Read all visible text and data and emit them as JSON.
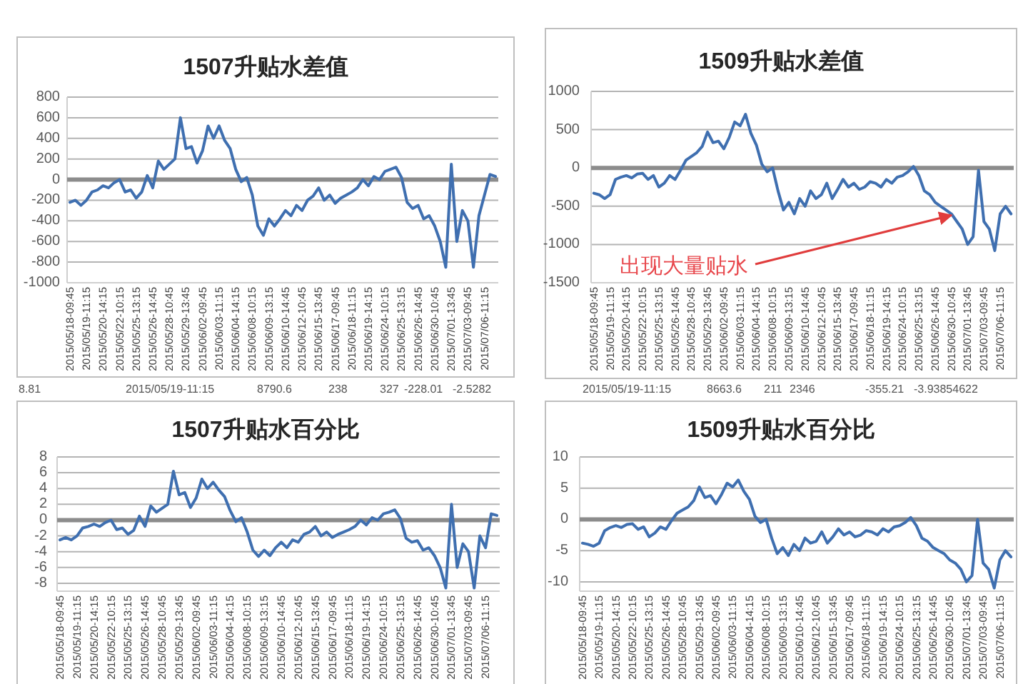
{
  "chart_data": [
    {
      "type": "line",
      "title": "1507升贴水差值",
      "categories": [
        "2015/05/18-09:45",
        null,
        null,
        "2015/05/19-11:15",
        null,
        null,
        "2015/05/20-14:15",
        null,
        null,
        "2015/05/22-10:15",
        null,
        null,
        "2015/05/25-13:15",
        null,
        null,
        "2015/05/26-14:45",
        null,
        null,
        "2015/05/28-10:45",
        null,
        null,
        "2015/05/29-13:45",
        null,
        null,
        "2015/06/02-09:45",
        null,
        null,
        "2015/06/03-11:15",
        null,
        null,
        "2015/06/04-14:15",
        null,
        null,
        "2015/06/08-10:15",
        null,
        null,
        "2015/06/09-13:15",
        null,
        null,
        "2015/06/10-14:45",
        null,
        null,
        "2015/06/12-10:45",
        null,
        null,
        "2015/06/15-13:45",
        null,
        null,
        "2015/06/17-09:45",
        null,
        null,
        "2015/06/18-11:15",
        null,
        null,
        "2015/06/19-14:15",
        null,
        null,
        "2015/06/24-10:15",
        null,
        null,
        "2015/06/25-13:15",
        null,
        null,
        "2015/06/26-14:45",
        null,
        null,
        "2015/06/30-10:45",
        null,
        null,
        "2015/07/01-13:45",
        null,
        null,
        "2015/07/03-09:45",
        null,
        null,
        "2015/07/06-11:15",
        null,
        null
      ],
      "series": [
        {
          "color": "#3f6fb0",
          "values": [
            -220,
            -200,
            -250,
            -200,
            -120,
            -100,
            -60,
            -80,
            -30,
            0,
            -120,
            -100,
            -180,
            -120,
            40,
            -80,
            180,
            100,
            150,
            200,
            600,
            300,
            320,
            160,
            280,
            520,
            400,
            520,
            380,
            300,
            100,
            -20,
            20,
            -150,
            -450,
            -540,
            -380,
            -450,
            -380,
            -300,
            -350,
            -250,
            -300,
            -200,
            -160,
            -80,
            -200,
            -150,
            -230,
            -180,
            -150,
            -120,
            -80,
            0,
            -60,
            30,
            0,
            80,
            100,
            120,
            20,
            -220,
            -280,
            -250,
            -380,
            -350,
            -450,
            -600,
            -850,
            150,
            -600,
            -300,
            -400,
            -850,
            -350,
            -150,
            50,
            30
          ]
        }
      ],
      "ylim": [
        -1000,
        800
      ],
      "yticks": [
        -1000,
        -800,
        -600,
        -400,
        -200,
        0,
        200,
        400,
        600,
        800
      ],
      "grid": "y",
      "annotations": [
        "8.81",
        "2015/05/19-11:15",
        "8790.6",
        "238",
        "327",
        "-228.01",
        "-2.5282"
      ]
    },
    {
      "type": "line",
      "title": "1509升贴水差值",
      "categories": [
        "2015/05/18-09:45",
        null,
        null,
        "2015/05/19-11:15",
        null,
        null,
        "2015/05/20-14:15",
        null,
        null,
        "2015/05/22-10:15",
        null,
        null,
        "2015/05/25-13:15",
        null,
        null,
        "2015/05/26-14:45",
        null,
        null,
        "2015/05/28-10:45",
        null,
        null,
        "2015/05/29-13:45",
        null,
        null,
        "2015/06/02-09:45",
        null,
        null,
        "2015/06/03-11:15",
        null,
        null,
        "2015/06/04-14:15",
        null,
        null,
        "2015/06/08-10:15",
        null,
        null,
        "2015/06/09-13:15",
        null,
        null,
        "2015/06/10-14:45",
        null,
        null,
        "2015/06/12-10:45",
        null,
        null,
        "2015/06/15-13:45",
        null,
        null,
        "2015/06/17-09:45",
        null,
        null,
        "2015/06/18-11:15",
        null,
        null,
        "2015/06/19-14:15",
        null,
        null,
        "2015/06/24-10:15",
        null,
        null,
        "2015/06/25-13:15",
        null,
        null,
        "2015/06/26-14:45",
        null,
        null,
        "2015/06/30-10:45",
        null,
        null,
        "2015/07/01-13:45",
        null,
        null,
        "2015/07/03-09:45",
        null,
        null,
        "2015/07/06-11:15",
        null,
        null
      ],
      "series": [
        {
          "color": "#3f6fb0",
          "values": [
            -330,
            -350,
            -400,
            -350,
            -150,
            -120,
            -100,
            -130,
            -80,
            -70,
            -150,
            -100,
            -250,
            -200,
            -100,
            -150,
            -30,
            100,
            150,
            200,
            280,
            470,
            330,
            350,
            250,
            400,
            600,
            550,
            700,
            450,
            300,
            50,
            -50,
            0,
            -300,
            -550,
            -450,
            -600,
            -400,
            -500,
            -300,
            -400,
            -350,
            -200,
            -400,
            -280,
            -150,
            -250,
            -200,
            -280,
            -250,
            -180,
            -200,
            -250,
            -150,
            -200,
            -120,
            -100,
            -50,
            20,
            -100,
            -300,
            -350,
            -450,
            -500,
            -550,
            -600,
            -700,
            -800,
            -1000,
            -900,
            -30,
            -700,
            -800,
            -1080,
            -600,
            -500,
            -600
          ]
        }
      ],
      "ylim": [
        -1500,
        1000
      ],
      "yticks": [
        -1500,
        -1000,
        -500,
        0,
        500,
        1000
      ],
      "grid": "y",
      "annotations": [
        "2015/05/19-11:15",
        "8663.6",
        "211",
        "2346",
        "-355.21",
        "-3.93854622",
        {
          "text": "出现大量贴水",
          "x": "2015/06/30-10:45",
          "y": -600
        }
      ]
    },
    {
      "type": "line",
      "title": "1507升贴水百分比",
      "categories": [
        "2015/05/18-09:45",
        null,
        null,
        "2015/05/19-11:15",
        null,
        null,
        "2015/05/20-14:15",
        null,
        null,
        "2015/05/22-10:15",
        null,
        null,
        "2015/05/25-13:15",
        null,
        null,
        "2015/05/26-14:45",
        null,
        null,
        "2015/05/28-10:45",
        null,
        null,
        "2015/05/29-13:45",
        null,
        null,
        "2015/06/02-09:45",
        null,
        null,
        "2015/06/03-11:15",
        null,
        null,
        "2015/06/04-14:15",
        null,
        null,
        "2015/06/08-10:15",
        null,
        null,
        "2015/06/09-13:15",
        null,
        null,
        "2015/06/10-14:45",
        null,
        null,
        "2015/06/12-10:45",
        null,
        null,
        "2015/06/15-13:45",
        null,
        null,
        "2015/06/17-09:45",
        null,
        null,
        "2015/06/18-11:15",
        null,
        null,
        "2015/06/19-14:15",
        null,
        null,
        "2015/06/24-10:15",
        null,
        null,
        "2015/06/25-13:15",
        null,
        null,
        "2015/06/26-14:45",
        null,
        null,
        "2015/06/30-10:45",
        null,
        null,
        "2015/07/01-13:45",
        null,
        null,
        "2015/07/03-09:45",
        null,
        null,
        "2015/07/06-11:15",
        null,
        null
      ],
      "series": [
        {
          "color": "#3f6fb0",
          "values": [
            -2.5,
            -2.2,
            -2.5,
            -2,
            -1,
            -0.8,
            -0.5,
            -0.8,
            -0.3,
            0,
            -1.2,
            -1,
            -1.8,
            -1.3,
            0.5,
            -0.8,
            1.8,
            1,
            1.5,
            2,
            6.2,
            3.2,
            3.5,
            1.6,
            2.8,
            5.2,
            4,
            4.8,
            3.8,
            3,
            1.2,
            -0.2,
            0.3,
            -1.5,
            -3.8,
            -4.6,
            -3.8,
            -4.5,
            -3.5,
            -2.8,
            -3.5,
            -2.5,
            -2.8,
            -1.8,
            -1.5,
            -0.8,
            -2,
            -1.5,
            -2.2,
            -1.8,
            -1.5,
            -1.2,
            -0.8,
            0,
            -0.6,
            0.3,
            0,
            0.8,
            1,
            1.3,
            0.2,
            -2.3,
            -2.8,
            -2.6,
            -3.8,
            -3.5,
            -4.5,
            -6,
            -8.6,
            2,
            -6,
            -3,
            -4,
            -8.6,
            -2,
            -3.5,
            0.8,
            0.6
          ]
        }
      ],
      "ylim": [
        -9,
        8
      ],
      "yticks": [
        -8,
        -6,
        -4,
        -2,
        0,
        2,
        4,
        6,
        8
      ],
      "grid": "y"
    },
    {
      "type": "line",
      "title": "1509升贴水百分比",
      "categories": [
        "2015/05/18-09:45",
        null,
        null,
        "2015/05/19-11:15",
        null,
        null,
        "2015/05/20-14:15",
        null,
        null,
        "2015/05/22-10:15",
        null,
        null,
        "2015/05/25-13:15",
        null,
        null,
        "2015/05/26-14:45",
        null,
        null,
        "2015/05/28-10:45",
        null,
        null,
        "2015/05/29-13:45",
        null,
        null,
        "2015/06/02-09:45",
        null,
        null,
        "2015/06/03-11:15",
        null,
        null,
        "2015/06/04-14:15",
        null,
        null,
        "2015/06/08-10:15",
        null,
        null,
        "2015/06/09-13:15",
        null,
        null,
        "2015/06/10-14:45",
        null,
        null,
        "2015/06/12-10:45",
        null,
        null,
        "2015/06/15-13:45",
        null,
        null,
        "2015/06/17-09:45",
        null,
        null,
        "2015/06/18-11:15",
        null,
        null,
        "2015/06/19-14:15",
        null,
        null,
        "2015/06/24-10:15",
        null,
        null,
        "2015/06/25-13:15",
        null,
        null,
        "2015/06/26-14:45",
        null,
        null,
        "2015/06/30-10:45",
        null,
        null,
        "2015/07/01-13:45",
        null,
        null,
        "2015/07/03-09:45",
        null,
        null,
        "2015/07/06-11:15",
        null,
        null
      ],
      "series": [
        {
          "color": "#3f6fb0",
          "values": [
            -3.8,
            -4,
            -4.3,
            -3.8,
            -1.8,
            -1.3,
            -1,
            -1.3,
            -0.8,
            -0.7,
            -1.6,
            -1.2,
            -2.8,
            -2.2,
            -1.2,
            -1.6,
            -0.2,
            1,
            1.5,
            2,
            3,
            5.2,
            3.5,
            3.8,
            2.5,
            4,
            5.8,
            5.2,
            6.3,
            4.5,
            3.2,
            0.5,
            -0.5,
            0,
            -3,
            -5.5,
            -4.5,
            -5.8,
            -4,
            -5,
            -3,
            -3.8,
            -3.5,
            -2,
            -3.8,
            -2.8,
            -1.5,
            -2.5,
            -2,
            -2.8,
            -2.5,
            -1.8,
            -2,
            -2.5,
            -1.5,
            -2,
            -1.2,
            -1,
            -0.5,
            0.3,
            -1,
            -3,
            -3.5,
            -4.5,
            -5,
            -5.5,
            -6.5,
            -7,
            -8,
            -10,
            -9,
            0,
            -7,
            -8,
            -11,
            -6.5,
            -5,
            -6
          ]
        }
      ],
      "ylim": [
        -11.5,
        10
      ],
      "yticks": [
        -10,
        -5,
        0,
        5,
        10
      ],
      "grid": "y"
    }
  ]
}
